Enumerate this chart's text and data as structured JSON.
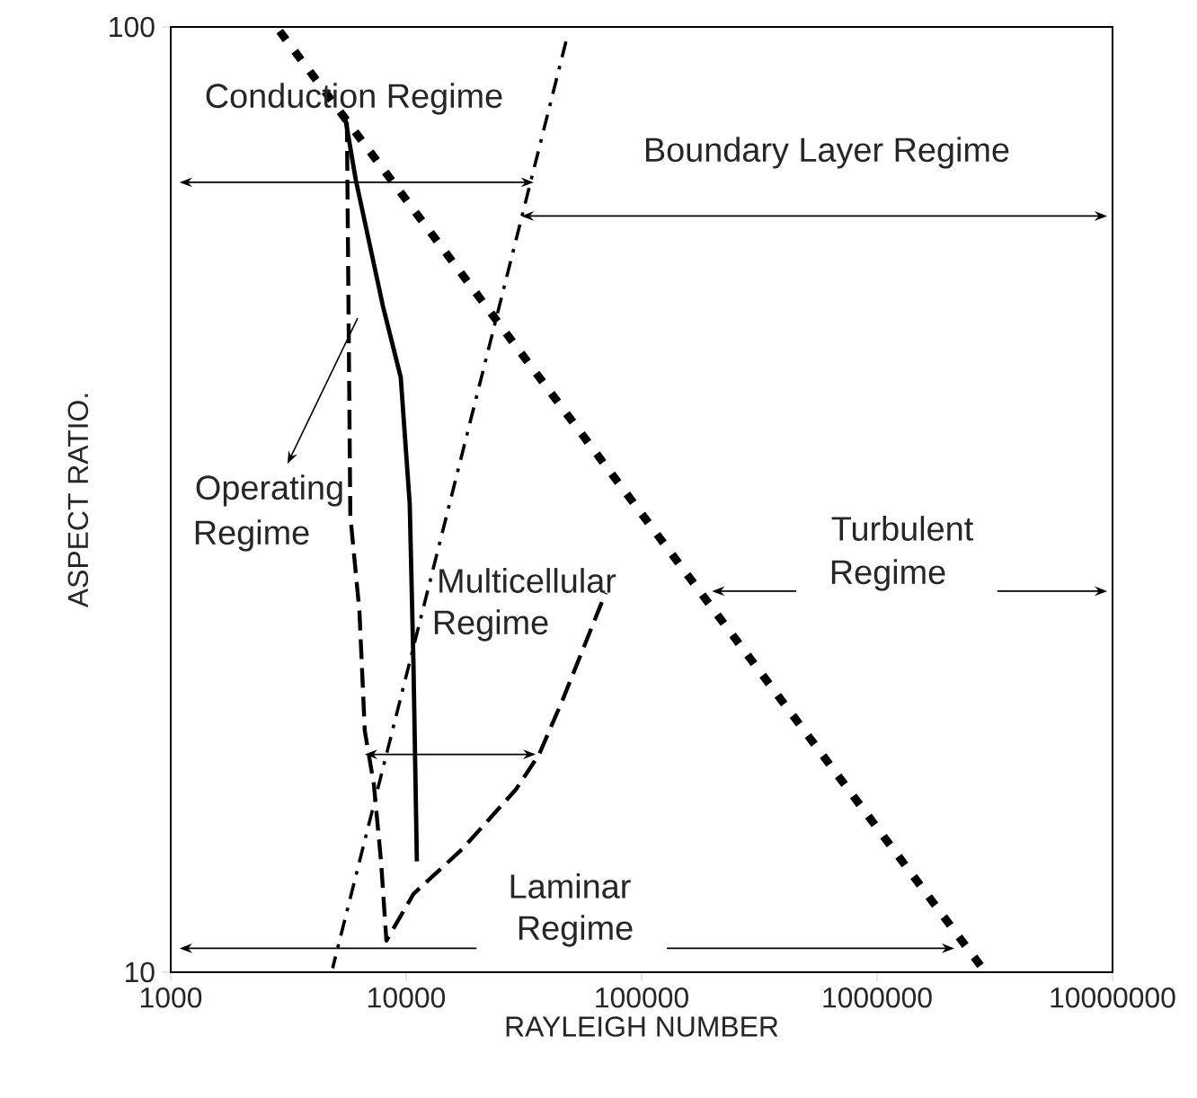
{
  "chart_data": {
    "type": "line",
    "xlabel": "RAYLEIGH NUMBER",
    "ylabel": "ASPECT RATIO.",
    "log": "xy",
    "marker": "none",
    "xlim": [
      1000,
      10000000
    ],
    "ylim": [
      10,
      100
    ],
    "xticks": [
      1000,
      10000,
      100000,
      1000000,
      10000000
    ],
    "yticks": [
      10,
      100
    ],
    "series": [
      {
        "color": "#000000",
        "line_style": "solid",
        "x": [
          5500,
          6110,
          7960,
          9480,
          10350,
          10740,
          11100
        ],
        "values": [
          80.3,
          68.9,
          50.7,
          42.6,
          31.3,
          21.1,
          13.1
        ]
      },
      {
        "color": "#000000",
        "line_style": "dashed",
        "x": [
          5600,
          5790,
          6330,
          6670,
          7290,
          7820,
          8240,
          10740,
          17300,
          29200,
          36700,
          46100,
          70300
        ],
        "values": [
          79.3,
          30.4,
          24.1,
          18.0,
          15.8,
          13.1,
          10.8,
          12.1,
          13.5,
          15.6,
          17.0,
          19.4,
          25.2
        ]
      },
      {
        "color": "#000000",
        "line_style": "dotted",
        "x": [
          2900,
          2800000
        ],
        "values": [
          99,
          10.1
        ]
      },
      {
        "color": "#000000",
        "line_style": "dashdot",
        "x": [
          47700,
          4870
        ],
        "values": [
          96.5,
          10.1
        ]
      }
    ],
    "annotations": [
      "Conduction Regime",
      "Boundary Layer Regime",
      {
        "text": "Operating",
        "x": 6220,
        "y": 49.2
      },
      "Regime",
      "Multicellular",
      "Regime",
      "Turbulent",
      "Regime",
      "Laminar",
      "Regime"
    ]
  }
}
